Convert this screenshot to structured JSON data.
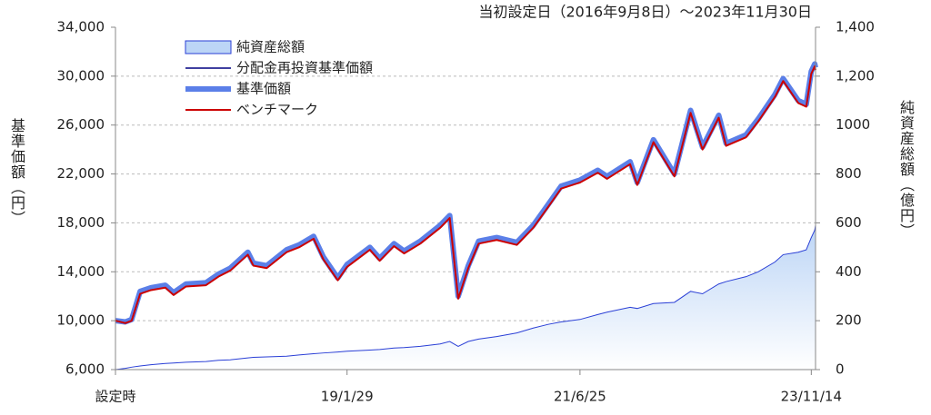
{
  "chart_data": {
    "type": "line",
    "title": "当初設定日（2016年9月8日）～2023年11月30日",
    "y_label": "基準価額（円）",
    "y2_label": "純資産総額（億円）",
    "x": [
      "16/9/8",
      "16/10/15",
      "16/11/8",
      "16/12/10",
      "17/1/20",
      "17/3/15",
      "17/4/15",
      "17/6/1",
      "17/8/15",
      "17/10/1",
      "17/11/15",
      "18/1/20",
      "18/2/10",
      "18/4/1",
      "18/6/15",
      "18/8/1",
      "18/9/25",
      "18/11/1",
      "18/12/25",
      "19/1/29",
      "19/4/25",
      "19/6/1",
      "19/7/25",
      "19/9/1",
      "19/11/1",
      "20/1/15",
      "20/2/20",
      "20/3/23",
      "20/4/30",
      "20/6/8",
      "20/8/15",
      "20/10/30",
      "20/12/31",
      "21/2/25",
      "21/4/15",
      "21/6/25",
      "21/8/31",
      "21/10/5",
      "21/12/31",
      "22/1/27",
      "22/3/29",
      "22/6/16",
      "22/8/16",
      "22/9/30",
      "22/11/30",
      "22/12/28",
      "23/3/13",
      "23/4/28",
      "23/6/30",
      "23/7/31",
      "23/9/26",
      "23/10/26",
      "23/11/14",
      "23/11/27",
      "23/11/30"
    ],
    "xlim": [
      "16/9/8",
      "23/11/30"
    ],
    "xticks": [
      {
        "value": "16/9/8",
        "label": "設定時"
      },
      "19/1/29",
      "21/6/25",
      "23/11/14"
    ],
    "ylim": [
      6000,
      34000
    ],
    "yticks": [
      {
        "value": 6000,
        "label": "6,000"
      },
      {
        "value": 10000,
        "label": "10,000"
      },
      {
        "value": 14000,
        "label": "14,000"
      },
      {
        "value": 18000,
        "label": "18,000"
      },
      {
        "value": 22000,
        "label": "22,000"
      },
      {
        "value": 26000,
        "label": "26,000"
      },
      {
        "value": 30000,
        "label": "30,000"
      },
      {
        "value": 34000,
        "label": "34,000"
      }
    ],
    "y2lim": [
      0,
      1400
    ],
    "y2ticks": [
      0,
      200,
      400,
      600,
      800,
      1000,
      {
        "value": 1200,
        "label": "1,200"
      },
      {
        "value": 1400,
        "label": "1,400"
      }
    ],
    "grid": true,
    "series": [
      {
        "name": "純資産総額",
        "type": "area",
        "axis": "y2",
        "color": "#2a3fd6",
        "fill": "#bcd5f6",
        "values": [
          0,
          5,
          10,
          15,
          20,
          25,
          27,
          30,
          33,
          38,
          40,
          48,
          50,
          52,
          55,
          60,
          65,
          68,
          72,
          75,
          80,
          82,
          88,
          90,
          95,
          105,
          115,
          95,
          115,
          125,
          135,
          150,
          170,
          185,
          195,
          205,
          225,
          235,
          255,
          250,
          270,
          275,
          320,
          310,
          350,
          360,
          380,
          400,
          440,
          470,
          480,
          490,
          540,
          570,
          590
        ]
      },
      {
        "name": "分配金再投資基準価額",
        "type": "line",
        "color": "#000080",
        "width": 1.5,
        "values": [
          10000,
          9900,
          10100,
          12400,
          12700,
          12900,
          12300,
          13000,
          13100,
          13800,
          14300,
          15600,
          14700,
          14500,
          15800,
          16200,
          16900,
          15200,
          13500,
          14600,
          16000,
          15100,
          16300,
          15700,
          16500,
          17800,
          18600,
          12000,
          14500,
          16500,
          16800,
          16400,
          17800,
          19500,
          21000,
          21500,
          22300,
          21800,
          23000,
          21300,
          24800,
          22000,
          27200,
          24200,
          26800,
          24500,
          25200,
          26500,
          28500,
          29800,
          28000,
          27700,
          30400,
          31000,
          30700
        ]
      },
      {
        "name": "基準価額",
        "type": "line",
        "color": "#5b7fe8",
        "width": 6,
        "values": [
          10000,
          9900,
          10100,
          12400,
          12700,
          12900,
          12300,
          13000,
          13100,
          13800,
          14300,
          15600,
          14700,
          14500,
          15800,
          16200,
          16900,
          15200,
          13500,
          14600,
          16000,
          15100,
          16300,
          15700,
          16500,
          17800,
          18600,
          12000,
          14500,
          16500,
          16800,
          16400,
          17800,
          19500,
          21000,
          21500,
          22300,
          21800,
          23000,
          21300,
          24800,
          22000,
          27200,
          24200,
          26800,
          24500,
          25200,
          26500,
          28500,
          29800,
          28000,
          27700,
          30400,
          31000,
          30700
        ]
      },
      {
        "name": "ベンチマーク",
        "type": "line",
        "color": "#cc0000",
        "width": 2,
        "values": [
          10000,
          9800,
          10000,
          12200,
          12500,
          12700,
          12100,
          12800,
          12900,
          13600,
          14100,
          15400,
          14500,
          14300,
          15600,
          16000,
          16700,
          15000,
          13300,
          14400,
          15800,
          14900,
          16100,
          15500,
          16300,
          17600,
          18400,
          11800,
          14300,
          16300,
          16600,
          16200,
          17600,
          19300,
          20800,
          21300,
          22100,
          21600,
          22800,
          21100,
          24600,
          21800,
          27000,
          24000,
          26600,
          24300,
          25000,
          26300,
          28300,
          29600,
          27800,
          27500,
          30200,
          30800,
          30500
        ]
      }
    ]
  }
}
